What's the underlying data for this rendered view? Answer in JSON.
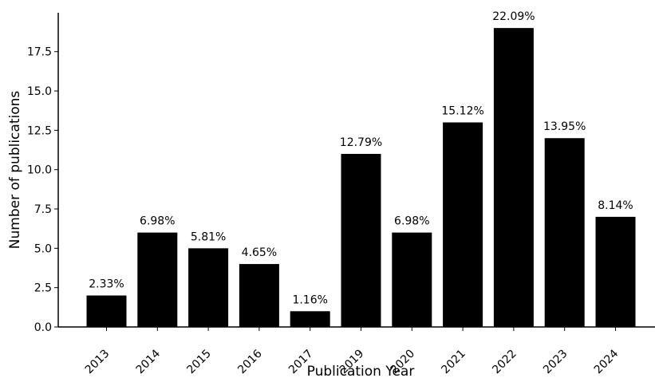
{
  "chart_data": {
    "type": "bar",
    "title": "",
    "xlabel": "Publication Year",
    "ylabel": "Number of publications",
    "categories": [
      "2013",
      "2014",
      "2015",
      "2016",
      "2017",
      "2019",
      "2020",
      "2021",
      "2022",
      "2023",
      "2024"
    ],
    "values": [
      2,
      6,
      5,
      4,
      1,
      11,
      6,
      13,
      19,
      12,
      7
    ],
    "data_labels": [
      "2.33%",
      "6.98%",
      "5.81%",
      "4.65%",
      "1.16%",
      "12.79%",
      "6.98%",
      "15.12%",
      "22.09%",
      "13.95%",
      "8.14%"
    ],
    "yticks": [
      "0.0",
      "2.5",
      "5.0",
      "7.5",
      "10.0",
      "12.5",
      "15.0",
      "17.5"
    ],
    "ylim": [
      0,
      20
    ],
    "grid": false,
    "legend": "none",
    "bar_color": "#000000"
  }
}
